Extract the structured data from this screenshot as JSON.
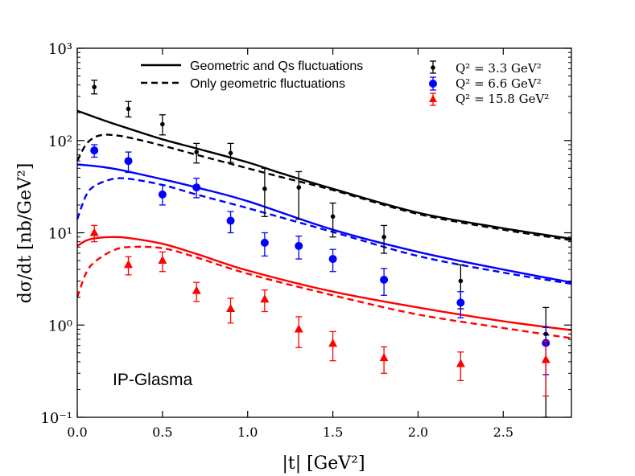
{
  "chart_data": {
    "type": "line",
    "title": "",
    "xlabel": "|t| [GeV²]",
    "ylabel": "dσ/dt [nb/GeV²]",
    "xlim": [
      0.0,
      2.9
    ],
    "ylim_log10": [
      -1,
      3
    ],
    "yscale": "log",
    "x_ticks": [
      0.0,
      0.5,
      1.0,
      1.5,
      2.0,
      2.5
    ],
    "x_tick_labels": [
      "0.0",
      "0.5",
      "1.0",
      "1.5",
      "2.0",
      "2.5"
    ],
    "y_tick_exponents": [
      -1,
      0,
      1,
      2,
      3
    ],
    "y_tick_labels": [
      "10⁻¹",
      "10⁰",
      "10¹",
      "10²",
      "10³"
    ],
    "annotation": "IP-Glasma",
    "legend_lines": [
      {
        "label": "Geometric and Qs fluctuations",
        "style": "solid"
      },
      {
        "label": "Only geometric fluctuations",
        "style": "dashed"
      }
    ],
    "legend_data": [
      {
        "label": "Q² = 3.3 GeV²",
        "color": "#000000",
        "marker": "dot"
      },
      {
        "label": "Q² = 6.6 GeV²",
        "color": "#0000ff",
        "marker": "circle"
      },
      {
        "label": "Q² = 15.8 GeV²",
        "color": "#ff0000",
        "marker": "triangle"
      }
    ],
    "curves": [
      {
        "name": "Q2=3.3 geometric+Qs",
        "color": "#000000",
        "style": "solid",
        "x": [
          0.0,
          0.1,
          0.2,
          0.3,
          0.5,
          0.7,
          1.0,
          1.2,
          1.5,
          2.0,
          2.5,
          2.9
        ],
        "y": [
          210,
          180,
          155,
          135,
          103,
          82,
          58,
          44,
          30,
          16.5,
          11.2,
          8.6
        ]
      },
      {
        "name": "Q2=3.3 geometric",
        "color": "#000000",
        "style": "dashed",
        "x": [
          0.0,
          0.05,
          0.1,
          0.15,
          0.2,
          0.3,
          0.5,
          0.7,
          1.0,
          1.2,
          1.5,
          2.0,
          2.5,
          2.9
        ],
        "y": [
          60,
          90,
          108,
          115,
          115,
          108,
          88,
          70,
          50,
          40,
          29,
          16,
          10.8,
          8.3
        ]
      },
      {
        "name": "Q2=6.6 geometric+Qs",
        "color": "#0000ff",
        "style": "solid",
        "x": [
          0.0,
          0.1,
          0.2,
          0.3,
          0.5,
          0.7,
          1.0,
          1.5,
          2.0,
          2.5,
          2.9
        ],
        "y": [
          55,
          53,
          50,
          46,
          38,
          31,
          22,
          10.8,
          6.2,
          4.0,
          2.9
        ]
      },
      {
        "name": "Q2=6.6 geometric",
        "color": "#0000ff",
        "style": "dashed",
        "x": [
          0.0,
          0.05,
          0.1,
          0.2,
          0.3,
          0.5,
          0.7,
          1.0,
          1.5,
          2.0,
          2.5,
          2.9
        ],
        "y": [
          14,
          25,
          32,
          38,
          38.5,
          33,
          26,
          18.5,
          10.2,
          5.6,
          3.7,
          2.8
        ]
      },
      {
        "name": "Q2=15.8 geometric+Qs",
        "color": "#ff0000",
        "style": "solid",
        "x": [
          0.0,
          0.05,
          0.1,
          0.2,
          0.3,
          0.5,
          0.7,
          1.0,
          1.5,
          2.0,
          2.5,
          2.9
        ],
        "y": [
          7.2,
          8.2,
          8.7,
          9.0,
          8.8,
          7.6,
          5.9,
          3.9,
          2.3,
          1.55,
          1.1,
          0.88
        ]
      },
      {
        "name": "Q2=15.8 geometric",
        "color": "#ff0000",
        "style": "dashed",
        "x": [
          0.0,
          0.05,
          0.1,
          0.2,
          0.3,
          0.5,
          0.7,
          1.0,
          1.5,
          2.0,
          2.5,
          2.9
        ],
        "y": [
          2.0,
          3.6,
          4.8,
          6.3,
          7.0,
          6.8,
          5.4,
          3.6,
          2.1,
          1.3,
          0.93,
          0.72
        ]
      }
    ],
    "data_points": [
      {
        "series": "Q² = 3.3 GeV²",
        "marker": "dot",
        "color": "#000000",
        "x": [
          0.1,
          0.3,
          0.5,
          0.7,
          0.9,
          1.1,
          1.3,
          1.5,
          1.8,
          2.25,
          2.75
        ],
        "y": [
          380,
          220,
          150,
          75,
          73,
          30,
          31,
          15,
          9,
          3,
          0.8
        ],
        "err_lo": [
          60,
          40,
          35,
          18,
          15,
          15,
          17,
          6,
          3,
          1.5,
          0.7
        ],
        "err_hi": [
          70,
          45,
          40,
          18,
          20,
          20,
          15,
          6,
          3,
          1.5,
          0.75
        ]
      },
      {
        "series": "Q² = 6.6 GeV²",
        "marker": "circle",
        "color": "#0000ff",
        "x": [
          0.1,
          0.3,
          0.5,
          0.7,
          0.9,
          1.1,
          1.3,
          1.5,
          1.8,
          2.25,
          2.75
        ],
        "y": [
          78,
          60,
          26,
          31,
          13.5,
          7.8,
          7.2,
          5.2,
          3.1,
          1.75,
          0.64
        ],
        "err_lo": [
          12,
          15,
          6,
          7,
          3.5,
          2.2,
          2.0,
          1.4,
          1.0,
          0.55,
          0.35
        ],
        "err_hi": [
          12,
          15,
          7,
          8,
          3.5,
          2.2,
          2.0,
          1.4,
          1.0,
          0.55,
          0.3
        ]
      },
      {
        "series": "Q² = 15.8 GeV²",
        "marker": "triangle",
        "color": "#ff0000",
        "x": [
          0.1,
          0.3,
          0.5,
          0.7,
          0.9,
          1.1,
          1.3,
          1.5,
          1.8,
          2.25,
          2.75
        ],
        "y": [
          10,
          4.5,
          5.0,
          2.35,
          1.5,
          1.9,
          0.9,
          0.63,
          0.44,
          0.38,
          0.42
        ],
        "err_lo": [
          2,
          1,
          1.2,
          0.55,
          0.45,
          0.5,
          0.33,
          0.22,
          0.14,
          0.13,
          0.25
        ],
        "err_hi": [
          2,
          1,
          1.2,
          0.55,
          0.45,
          0.5,
          0.33,
          0.22,
          0.14,
          0.13,
          0.25
        ]
      }
    ]
  }
}
